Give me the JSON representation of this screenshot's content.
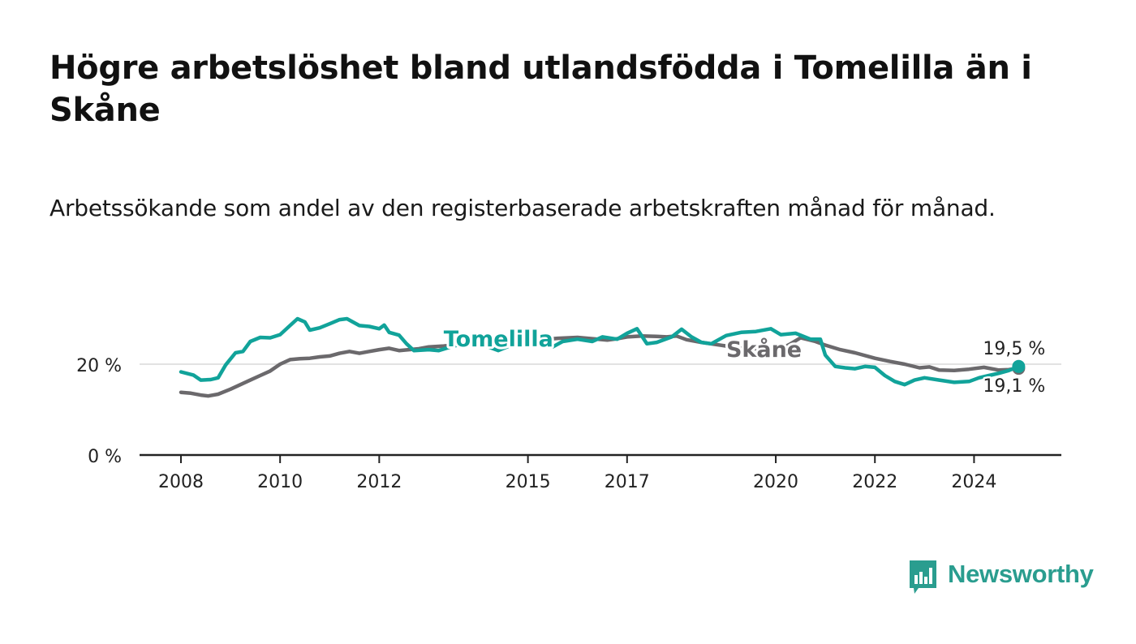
{
  "title": "Högre arbetslöshet bland utlandsfödda i Tomelilla än i Skåne",
  "subtitle": "Arbetssökande som andel av den registerbaserade arbetskraften månad för månad.",
  "brand": "Newsworthy",
  "colors": {
    "tomelilla": "#11a39a",
    "skane": "#6b696c",
    "axis": "#222222",
    "grid": "#d9d9d9",
    "brand": "#2a9d8f"
  },
  "chart_data": {
    "type": "line",
    "x_range": [
      2008,
      2025.0
    ],
    "ylim": [
      0,
      33
    ],
    "x_ticks": [
      2008,
      2010,
      2012,
      2015,
      2017,
      2020,
      2022,
      2024
    ],
    "x_tick_labels": [
      "2008",
      "2010",
      "2012",
      "2015",
      "2017",
      "2020",
      "2022",
      "2024"
    ],
    "y_ticks": [
      0,
      20
    ],
    "y_tick_labels": [
      "0 %",
      "20 %"
    ],
    "grid_y": [
      20
    ],
    "series": [
      {
        "name": "Tomelilla",
        "color": "#11a39a",
        "end_label": "19,5 %",
        "points": [
          [
            2008.0,
            18.3
          ],
          [
            2008.25,
            17.6
          ],
          [
            2008.4,
            16.5
          ],
          [
            2008.6,
            16.6
          ],
          [
            2008.75,
            17.0
          ],
          [
            2008.9,
            19.8
          ],
          [
            2009.1,
            22.5
          ],
          [
            2009.25,
            22.8
          ],
          [
            2009.4,
            25.0
          ],
          [
            2009.6,
            25.9
          ],
          [
            2009.8,
            25.8
          ],
          [
            2010.0,
            26.5
          ],
          [
            2010.2,
            28.5
          ],
          [
            2010.35,
            30.0
          ],
          [
            2010.5,
            29.3
          ],
          [
            2010.6,
            27.5
          ],
          [
            2010.8,
            28.0
          ],
          [
            2011.0,
            28.9
          ],
          [
            2011.2,
            29.8
          ],
          [
            2011.35,
            30.0
          ],
          [
            2011.6,
            28.5
          ],
          [
            2011.8,
            28.3
          ],
          [
            2012.0,
            27.8
          ],
          [
            2012.1,
            28.6
          ],
          [
            2012.2,
            27.0
          ],
          [
            2012.4,
            26.4
          ],
          [
            2012.55,
            24.5
          ],
          [
            2012.7,
            23.0
          ],
          [
            2013.0,
            23.2
          ],
          [
            2013.2,
            23.0
          ],
          [
            2013.5,
            24.0
          ],
          [
            2013.8,
            24.6
          ],
          [
            2014.0,
            24.6
          ],
          [
            2014.4,
            23.0
          ],
          [
            2014.8,
            24.8
          ],
          [
            2015.0,
            25.0
          ],
          [
            2015.2,
            24.5
          ],
          [
            2015.5,
            23.8
          ],
          [
            2015.7,
            25.0
          ],
          [
            2016.0,
            25.5
          ],
          [
            2016.3,
            25.0
          ],
          [
            2016.5,
            26.0
          ],
          [
            2016.8,
            25.5
          ],
          [
            2017.0,
            26.8
          ],
          [
            2017.2,
            27.8
          ],
          [
            2017.4,
            24.5
          ],
          [
            2017.6,
            24.8
          ],
          [
            2017.9,
            26.0
          ],
          [
            2018.1,
            27.7
          ],
          [
            2018.3,
            26.0
          ],
          [
            2018.5,
            24.8
          ],
          [
            2018.7,
            24.5
          ],
          [
            2019.0,
            26.3
          ],
          [
            2019.3,
            27.0
          ],
          [
            2019.6,
            27.2
          ],
          [
            2019.9,
            27.8
          ],
          [
            2020.1,
            26.5
          ],
          [
            2020.4,
            26.8
          ],
          [
            2020.7,
            25.5
          ],
          [
            2020.9,
            25.5
          ],
          [
            2021.0,
            22.0
          ],
          [
            2021.2,
            19.5
          ],
          [
            2021.4,
            19.2
          ],
          [
            2021.6,
            19.0
          ],
          [
            2021.8,
            19.5
          ],
          [
            2022.0,
            19.3
          ],
          [
            2022.2,
            17.5
          ],
          [
            2022.4,
            16.2
          ],
          [
            2022.6,
            15.5
          ],
          [
            2022.8,
            16.5
          ],
          [
            2023.0,
            17.0
          ],
          [
            2023.3,
            16.5
          ],
          [
            2023.6,
            16.0
          ],
          [
            2023.9,
            16.2
          ],
          [
            2024.1,
            17.0
          ],
          [
            2024.3,
            17.5
          ],
          [
            2024.5,
            18.0
          ],
          [
            2024.7,
            18.6
          ],
          [
            2024.9,
            19.5
          ]
        ]
      },
      {
        "name": "Skåne",
        "color": "#6b696c",
        "end_label": "19,1 %",
        "points": [
          [
            2008.0,
            13.8
          ],
          [
            2008.2,
            13.6
          ],
          [
            2008.4,
            13.2
          ],
          [
            2008.55,
            13.0
          ],
          [
            2008.75,
            13.4
          ],
          [
            2009.0,
            14.5
          ],
          [
            2009.2,
            15.5
          ],
          [
            2009.4,
            16.5
          ],
          [
            2009.6,
            17.5
          ],
          [
            2009.8,
            18.5
          ],
          [
            2010.0,
            20.0
          ],
          [
            2010.2,
            21.0
          ],
          [
            2010.4,
            21.2
          ],
          [
            2010.6,
            21.3
          ],
          [
            2010.8,
            21.6
          ],
          [
            2011.0,
            21.8
          ],
          [
            2011.2,
            22.4
          ],
          [
            2011.4,
            22.8
          ],
          [
            2011.6,
            22.4
          ],
          [
            2011.8,
            22.8
          ],
          [
            2012.0,
            23.2
          ],
          [
            2012.2,
            23.5
          ],
          [
            2012.4,
            23.0
          ],
          [
            2012.6,
            23.2
          ],
          [
            2012.8,
            23.4
          ],
          [
            2013.0,
            23.8
          ],
          [
            2013.3,
            24.0
          ],
          [
            2013.6,
            24.3
          ],
          [
            2014.0,
            24.7
          ],
          [
            2014.3,
            25.0
          ],
          [
            2014.6,
            25.1
          ],
          [
            2015.0,
            25.2
          ],
          [
            2015.3,
            25.4
          ],
          [
            2015.6,
            25.7
          ],
          [
            2016.0,
            25.9
          ],
          [
            2016.3,
            25.6
          ],
          [
            2016.6,
            25.3
          ],
          [
            2016.8,
            25.6
          ],
          [
            2017.0,
            26.0
          ],
          [
            2017.3,
            26.2
          ],
          [
            2017.6,
            26.1
          ],
          [
            2017.8,
            26.0
          ],
          [
            2018.0,
            26.2
          ],
          [
            2018.2,
            25.4
          ],
          [
            2018.5,
            24.8
          ],
          [
            2019.0,
            24.0
          ],
          [
            2019.5,
            23.5
          ],
          [
            2019.8,
            23.2
          ],
          [
            2020.1,
            23.3
          ],
          [
            2020.3,
            24.5
          ],
          [
            2020.5,
            25.8
          ],
          [
            2020.8,
            25.0
          ],
          [
            2021.0,
            24.2
          ],
          [
            2021.3,
            23.2
          ],
          [
            2021.6,
            22.5
          ],
          [
            2022.0,
            21.3
          ],
          [
            2022.3,
            20.6
          ],
          [
            2022.6,
            20.0
          ],
          [
            2022.9,
            19.2
          ],
          [
            2023.1,
            19.4
          ],
          [
            2023.3,
            18.7
          ],
          [
            2023.6,
            18.6
          ],
          [
            2023.9,
            18.9
          ],
          [
            2024.2,
            19.3
          ],
          [
            2024.5,
            18.7
          ],
          [
            2024.7,
            18.8
          ],
          [
            2024.9,
            19.1
          ]
        ]
      }
    ],
    "labels": [
      {
        "series": "Tomelilla",
        "text": "Tomelilla",
        "x": 2013.3,
        "y": 25.5
      },
      {
        "series": "Skåne",
        "text": "Skåne",
        "x": 2019.0,
        "y": 23.2
      }
    ]
  }
}
